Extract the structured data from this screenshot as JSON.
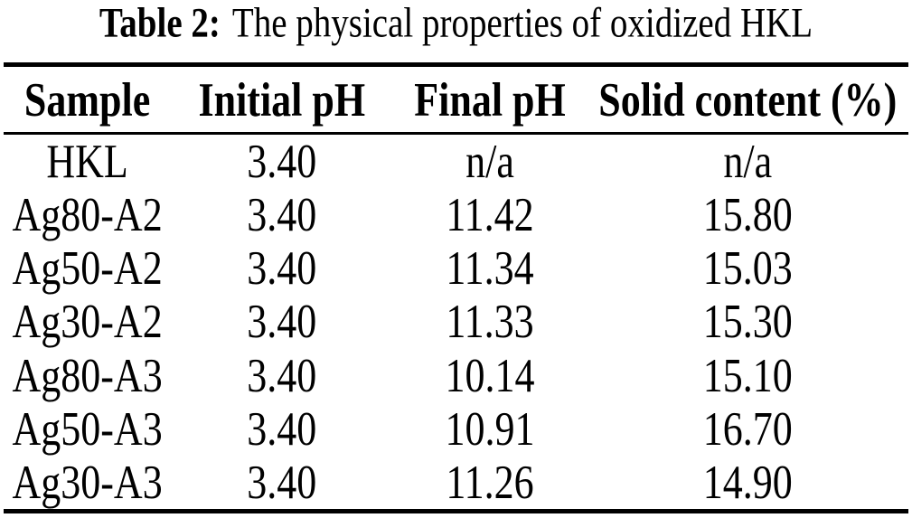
{
  "caption": {
    "label": "Table 2:",
    "text": "The physical properties of oxidized HKL"
  },
  "table": {
    "headers": [
      "Sample",
      "Initial pH",
      "Final pH",
      "Solid content (%)"
    ],
    "rows": [
      [
        "HKL",
        "3.40",
        "n/a",
        "n/a"
      ],
      [
        "Ag80-A2",
        "3.40",
        "11.42",
        "15.80"
      ],
      [
        "Ag50-A2",
        "3.40",
        "11.34",
        "15.03"
      ],
      [
        "Ag30-A2",
        "3.40",
        "11.33",
        "15.30"
      ],
      [
        "Ag80-A3",
        "3.40",
        "10.14",
        "15.10"
      ],
      [
        "Ag50-A3",
        "3.40",
        "10.91",
        "16.70"
      ],
      [
        "Ag30-A3",
        "3.40",
        "11.26",
        "14.90"
      ]
    ]
  },
  "colors": {
    "text": "#000000",
    "background": "#ffffff",
    "rule": "#000000"
  },
  "chart_data": {
    "type": "table",
    "title": "Table 2: The physical properties of oxidized HKL",
    "columns": [
      "Sample",
      "Initial pH",
      "Final pH",
      "Solid content (%)"
    ],
    "rows": [
      {
        "sample": "HKL",
        "initial_ph": 3.4,
        "final_ph": null,
        "solid_content_pct": null
      },
      {
        "sample": "Ag80-A2",
        "initial_ph": 3.4,
        "final_ph": 11.42,
        "solid_content_pct": 15.8
      },
      {
        "sample": "Ag50-A2",
        "initial_ph": 3.4,
        "final_ph": 11.34,
        "solid_content_pct": 15.03
      },
      {
        "sample": "Ag30-A2",
        "initial_ph": 3.4,
        "final_ph": 11.33,
        "solid_content_pct": 15.3
      },
      {
        "sample": "Ag80-A3",
        "initial_ph": 3.4,
        "final_ph": 10.14,
        "solid_content_pct": 15.1
      },
      {
        "sample": "Ag50-A3",
        "initial_ph": 3.4,
        "final_ph": 10.91,
        "solid_content_pct": 16.7
      },
      {
        "sample": "Ag30-A3",
        "initial_ph": 3.4,
        "final_ph": 11.26,
        "solid_content_pct": 14.9
      }
    ]
  }
}
